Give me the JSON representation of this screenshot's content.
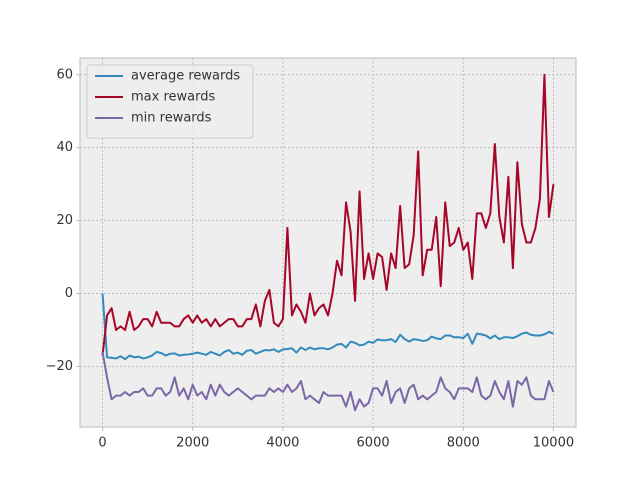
{
  "chart_data": {
    "type": "line",
    "x": [
      0,
      100,
      200,
      300,
      400,
      500,
      600,
      700,
      800,
      900,
      1000,
      1100,
      1200,
      1300,
      1400,
      1500,
      1600,
      1700,
      1800,
      1900,
      2000,
      2100,
      2200,
      2300,
      2400,
      2500,
      2600,
      2700,
      2800,
      2900,
      3000,
      3100,
      3200,
      3300,
      3400,
      3500,
      3600,
      3700,
      3800,
      3900,
      4000,
      4100,
      4200,
      4300,
      4400,
      4500,
      4600,
      4700,
      4800,
      4900,
      5000,
      5100,
      5200,
      5300,
      5400,
      5500,
      5600,
      5700,
      5800,
      5900,
      6000,
      6100,
      6200,
      6300,
      6400,
      6500,
      6600,
      6700,
      6800,
      6900,
      7000,
      7100,
      7200,
      7300,
      7400,
      7500,
      7600,
      7700,
      7800,
      7900,
      8000,
      8100,
      8200,
      8300,
      8400,
      8500,
      8600,
      8700,
      8800,
      8900,
      9000,
      9100,
      9200,
      9300,
      9400,
      9500,
      9600,
      9700,
      9800,
      9900,
      10000
    ],
    "series": [
      {
        "name": "average rewards",
        "color": "#348ABD",
        "values": [
          0,
          -17.5,
          -17.6,
          -17.8,
          -17.2,
          -18,
          -17,
          -17.5,
          -17.3,
          -17.8,
          -17.5,
          -17,
          -16,
          -16.3,
          -17,
          -16.5,
          -16.4,
          -17,
          -16.8,
          -16.7,
          -16.5,
          -16.2,
          -16.5,
          -16.8,
          -16,
          -16.5,
          -17,
          -16,
          -15.5,
          -16.5,
          -16.2,
          -16.8,
          -15.7,
          -15.5,
          -16.5,
          -16,
          -15.5,
          -15.6,
          -15.3,
          -16,
          -15.3,
          -15.2,
          -15,
          -16.2,
          -14.8,
          -15.5,
          -14.8,
          -15.3,
          -15,
          -15,
          -15.3,
          -14.8,
          -14,
          -13.8,
          -14.8,
          -13.2,
          -13.5,
          -14.2,
          -14,
          -13.2,
          -13.5,
          -12.6,
          -12.8,
          -12.8,
          -12.5,
          -13.3,
          -11.3,
          -12.5,
          -13.2,
          -12.5,
          -12.7,
          -13,
          -12.8,
          -11.8,
          -12.3,
          -12.5,
          -11.5,
          -11.5,
          -12,
          -12,
          -12.2,
          -11,
          -13.8,
          -11,
          -11.2,
          -11.5,
          -12.3,
          -11.5,
          -12.5,
          -12,
          -12,
          -12.2,
          -11.7,
          -11,
          -10.7,
          -11.3,
          -11.5,
          -11.5,
          -11.2,
          -10.5,
          -11
        ]
      },
      {
        "name": "max rewards",
        "color": "#A60628",
        "values": [
          -17,
          -6,
          -4,
          -10,
          -9,
          -10,
          -5,
          -10,
          -9,
          -7,
          -7,
          -9,
          -5,
          -8,
          -8,
          -8,
          -9,
          -9,
          -7,
          -6,
          -8,
          -6,
          -8,
          -7,
          -9,
          -7,
          -9,
          -8,
          -7,
          -7,
          -9,
          -9,
          -7,
          -7,
          -3,
          -9,
          -2,
          1,
          -8,
          -9,
          -7,
          18,
          -6,
          -3,
          -5,
          -8,
          0,
          -6,
          -4,
          -3,
          -6,
          0,
          9,
          5,
          25,
          17,
          -2,
          28,
          4,
          11,
          4,
          11,
          10,
          1,
          11,
          7,
          24,
          7,
          8,
          16,
          39,
          5,
          12,
          12,
          21,
          2,
          25,
          13,
          14,
          18,
          12,
          14,
          4,
          22,
          22,
          18,
          22,
          41,
          21,
          14,
          32,
          7,
          36,
          19,
          14,
          14,
          18,
          26,
          60,
          21,
          30
        ]
      },
      {
        "name": "min rewards",
        "color": "#7A68A6",
        "values": [
          -16,
          -23,
          -29,
          -28,
          -28,
          -27,
          -28,
          -27,
          -27,
          -26,
          -28,
          -28,
          -26,
          -26,
          -28,
          -27,
          -23,
          -28,
          -26,
          -29,
          -25,
          -28,
          -27,
          -29,
          -25,
          -28,
          -25,
          -27,
          -28,
          -27,
          -26,
          -27,
          -28,
          -29,
          -28,
          -28,
          -28,
          -26,
          -27,
          -26,
          -27,
          -25,
          -27,
          -26,
          -24,
          -29,
          -28,
          -29,
          -30,
          -27,
          -28,
          -28,
          -28,
          -28,
          -31,
          -27,
          -32,
          -29,
          -31,
          -30,
          -26,
          -26,
          -28,
          -24,
          -30,
          -27,
          -26,
          -30,
          -26,
          -25,
          -29,
          -28,
          -29,
          -28,
          -27,
          -23,
          -26,
          -27,
          -29,
          -26,
          -26,
          -26,
          -27,
          -23,
          -28,
          -29,
          -28,
          -24,
          -27,
          -29,
          -24,
          -31,
          -24,
          -25,
          -23,
          -28,
          -29,
          -29,
          -29,
          -24,
          -27
        ]
      }
    ],
    "xlim": [
      -500,
      10500
    ],
    "ylim": [
      -36.6,
      64.6
    ],
    "xticks": [
      0,
      2000,
      4000,
      6000,
      8000,
      10000
    ],
    "yticks": [
      {
        "value": -20,
        "label": "−20"
      },
      0,
      20,
      40,
      60
    ],
    "grid": true,
    "legend": "upper left"
  }
}
